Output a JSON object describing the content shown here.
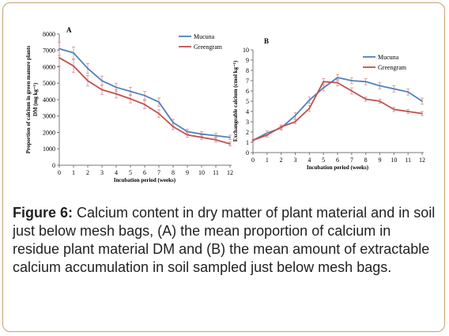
{
  "chart_data": [
    {
      "type": "line",
      "panel_label": "A",
      "xlabel": "Incubation period (weeks)",
      "ylabel_line1": "Proportion of calcium in green manure plants",
      "ylabel_line2": "DM (mg kg⁻¹)",
      "x": [
        0,
        1,
        2,
        3,
        4,
        5,
        6,
        7,
        8,
        9,
        10,
        11,
        12
      ],
      "ylim": [
        0,
        8000
      ],
      "yticks": [
        0,
        1000,
        2000,
        3000,
        4000,
        5000,
        6000,
        7000,
        8000
      ],
      "legend_position": "top-right",
      "series": [
        {
          "name": "Mucuna",
          "color": "#4f81bd",
          "values": [
            7100,
            6850,
            5900,
            5150,
            4750,
            4500,
            4250,
            3850,
            2600,
            2050,
            1900,
            1800,
            1700
          ],
          "errors": [
            400,
            350,
            300,
            280,
            250,
            250,
            250,
            250,
            200,
            150,
            150,
            150,
            130
          ]
        },
        {
          "name": "Greengram",
          "color": "#c0504d",
          "values": [
            6550,
            6050,
            5150,
            4600,
            4350,
            4050,
            3700,
            3150,
            2350,
            1850,
            1700,
            1550,
            1300
          ],
          "errors": [
            500,
            380,
            320,
            280,
            250,
            250,
            250,
            230,
            180,
            150,
            140,
            140,
            120
          ]
        }
      ]
    },
    {
      "type": "line",
      "panel_label": "B",
      "xlabel": "Incubation period (weeks)",
      "ylabel": "Exchangeable calcium (cmol kg⁻¹)",
      "x": [
        0,
        1,
        2,
        3,
        4,
        5,
        6,
        7,
        8,
        9,
        10,
        11,
        12
      ],
      "ylim": [
        0,
        10
      ],
      "yticks": [
        0,
        1,
        2,
        3,
        4,
        5,
        6,
        7,
        8,
        9,
        10
      ],
      "legend_position": "top-right",
      "series": [
        {
          "name": "Mucuna",
          "color": "#4f81bd",
          "values": [
            1.2,
            1.9,
            2.4,
            3.6,
            5.1,
            6.3,
            7.3,
            7.0,
            6.9,
            6.5,
            6.2,
            5.9,
            5.0
          ],
          "errors": [
            0.1,
            0.2,
            0.2,
            0.3,
            0.3,
            0.3,
            0.3,
            0.3,
            0.3,
            0.3,
            0.3,
            0.3,
            0.3
          ]
        },
        {
          "name": "Greengram",
          "color": "#c0504d",
          "values": [
            1.2,
            1.7,
            2.5,
            3.0,
            4.3,
            6.9,
            6.8,
            6.0,
            5.2,
            5.0,
            4.2,
            4.0,
            3.8
          ],
          "errors": [
            0.1,
            0.2,
            0.2,
            0.2,
            0.3,
            0.3,
            0.3,
            0.3,
            0.2,
            0.2,
            0.2,
            0.2,
            0.2
          ]
        }
      ]
    }
  ],
  "caption": {
    "label": "Figure 6:",
    "text": " Calcium content in dry matter of plant material and in soil just below mesh bags, (A) the mean proportion of calcium in residue plant material DM and (B) the mean amount of extractable calcium accumulation in soil sampled just below mesh bags."
  }
}
